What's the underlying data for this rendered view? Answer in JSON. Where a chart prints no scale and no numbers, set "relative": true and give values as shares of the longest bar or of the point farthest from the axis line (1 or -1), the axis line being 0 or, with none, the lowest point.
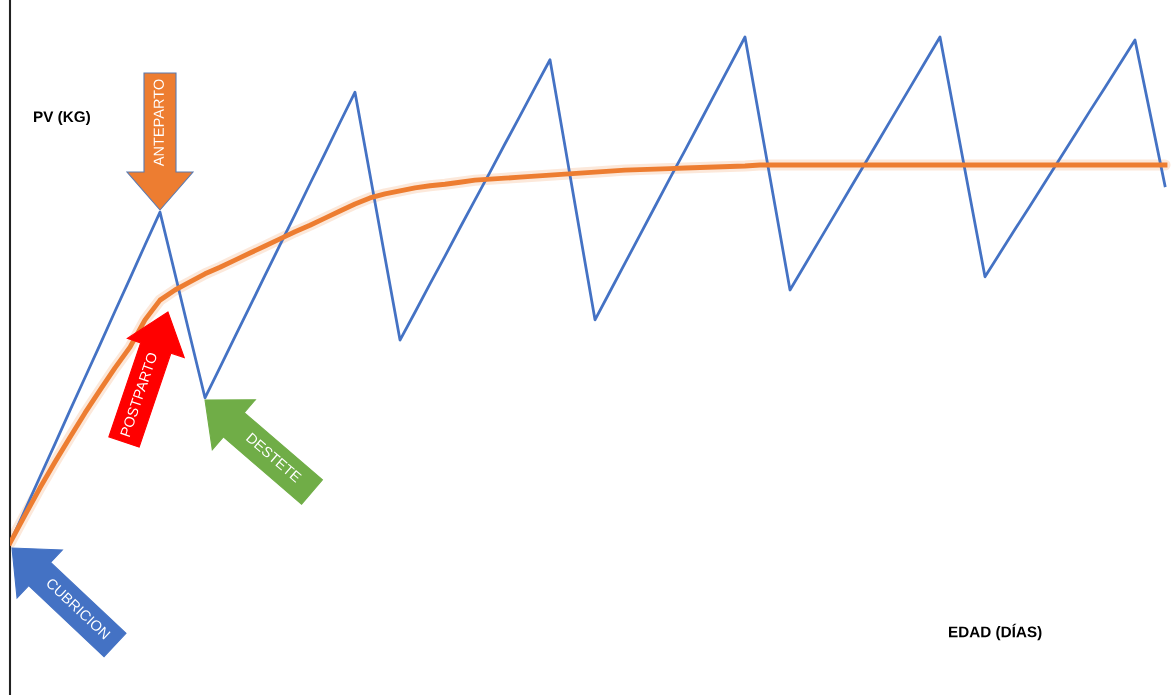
{
  "chart_data": {
    "type": "line",
    "relative": true,
    "ylabel": "PV (KG)",
    "categories": [
      null,
      null,
      null,
      null,
      null,
      null,
      null,
      null,
      null,
      null,
      null,
      null,
      null,
      null,
      null,
      null,
      null,
      null,
      null,
      null,
      null,
      null,
      null,
      null,
      null,
      null,
      null,
      null,
      null,
      null,
      null,
      null,
      null,
      null,
      null,
      null,
      null,
      null,
      null,
      null,
      null,
      null,
      null,
      null,
      null,
      null,
      null,
      null,
      null,
      null,
      null,
      null,
      null,
      null,
      null,
      null,
      null,
      null,
      null,
      null,
      null,
      null,
      null,
      null,
      null,
      null,
      null,
      null,
      null,
      null,
      null,
      null,
      null,
      null,
      null,
      null,
      null,
      null
    ],
    "series": [
      {
        "color": "#4472c4",
        "values": [
          0,
          0.065,
          0.131,
          0.196,
          0.262,
          0.327,
          0.392,
          0.458,
          0.523,
          0.589,
          0.654,
          0.532,
          0.409,
          0.287,
          0.347,
          0.408,
          0.468,
          0.529,
          0.589,
          0.649,
          0.71,
          0.77,
          0.831,
          0.891,
          0.728,
          0.564,
          0.401,
          0.456,
          0.512,
          0.567,
          0.623,
          0.678,
          0.733,
          0.789,
          0.844,
          0.9,
          0.955,
          0.784,
          0.612,
          0.441,
          0.497,
          0.553,
          0.609,
          0.665,
          0.721,
          0.776,
          0.832,
          0.888,
          0.944,
          1.0,
          0.833,
          0.667,
          0.5,
          0.55,
          0.6,
          0.65,
          0.7,
          0.75,
          0.8,
          0.85,
          0.9,
          0.95,
          1.0,
          0.842,
          0.684,
          0.526,
          0.573,
          0.62,
          0.666,
          0.713,
          0.76,
          0.807,
          0.854,
          0.9,
          0.947,
          0.994,
          0.85,
          0.706
        ]
      },
      {
        "color": "#ed7d31",
        "values": [
          0,
          0.055,
          0.109,
          0.16,
          0.209,
          0.257,
          0.302,
          0.346,
          0.387,
          0.441,
          0.48,
          0.5,
          0.516,
          0.532,
          0.545,
          0.559,
          0.573,
          0.587,
          0.601,
          0.615,
          0.628,
          0.642,
          0.656,
          0.67,
          0.682,
          0.69,
          0.696,
          0.702,
          0.706,
          0.709,
          0.713,
          0.717,
          0.719,
          0.721,
          0.723,
          0.725,
          0.727,
          0.729,
          0.731,
          0.733,
          0.735,
          0.737,
          0.738,
          0.739,
          0.74,
          0.741,
          0.742,
          0.743,
          0.744,
          0.745,
          0.747,
          0.747,
          0.747,
          0.747,
          0.747,
          0.747,
          0.747,
          0.747,
          0.747,
          0.747,
          0.747,
          0.747,
          0.747,
          0.747,
          0.747,
          0.747,
          0.747,
          0.747,
          0.747,
          0.747,
          0.747,
          0.747,
          0.747,
          0.747,
          0.747,
          0.747,
          0.747,
          0.747
        ]
      }
    ],
    "annotations": [
      "ANTEPARTO",
      "POSTPARTO",
      "DESTETE",
      "CUBRICION",
      "EDAD (DÍAS)"
    ]
  }
}
